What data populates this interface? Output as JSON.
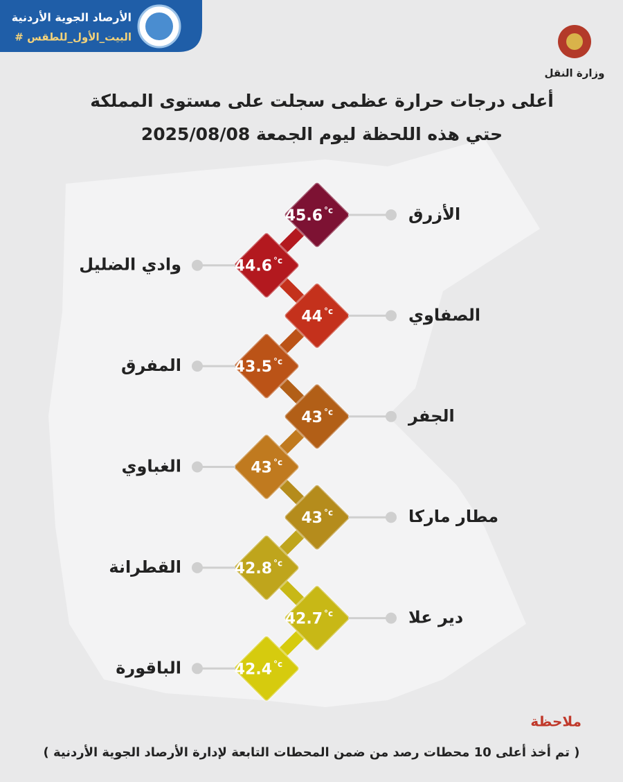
{
  "header": {
    "org_name": "الأرصاد الجوية الأردنية",
    "hashtag": "# البيت_الأول_للطقس",
    "ministry": "وزارة النقل"
  },
  "title": {
    "line1": "أعلى درجات حرارة عظمى سجلت على مستوى المملكة",
    "line2": "حتي هذه اللحظة ليوم الجمعة  2025/08/08"
  },
  "unit": "°c",
  "stations": [
    {
      "name": "الأزرق",
      "temp": 45.6,
      "color": "#7d1233"
    },
    {
      "name": "وادي الضليل",
      "temp": 44.6,
      "color": "#b3191f"
    },
    {
      "name": "الصفاوي",
      "temp": 44,
      "color": "#c4311c"
    },
    {
      "name": "المفرق",
      "temp": 43.5,
      "color": "#bb5317"
    },
    {
      "name": "الجفر",
      "temp": 43,
      "color": "#b25f17"
    },
    {
      "name": "الغباوي",
      "temp": 43,
      "color": "#c07a1f"
    },
    {
      "name": "مطار ماركا",
      "temp": 43,
      "color": "#b58c1c"
    },
    {
      "name": "القطرانة",
      "temp": 42.8,
      "color": "#bfa51c"
    },
    {
      "name": "دير علا",
      "temp": 42.7,
      "color": "#c8b816"
    },
    {
      "name": "الباقورة",
      "temp": 42.4,
      "color": "#d6cb0e"
    }
  ],
  "note": {
    "label": "ملاحظة",
    "text": "( تم أخذ أعلى 10 محطات رصد من ضمن المحطات التابعة لإدارة الأرصاد الجوية الأردنية )"
  }
}
